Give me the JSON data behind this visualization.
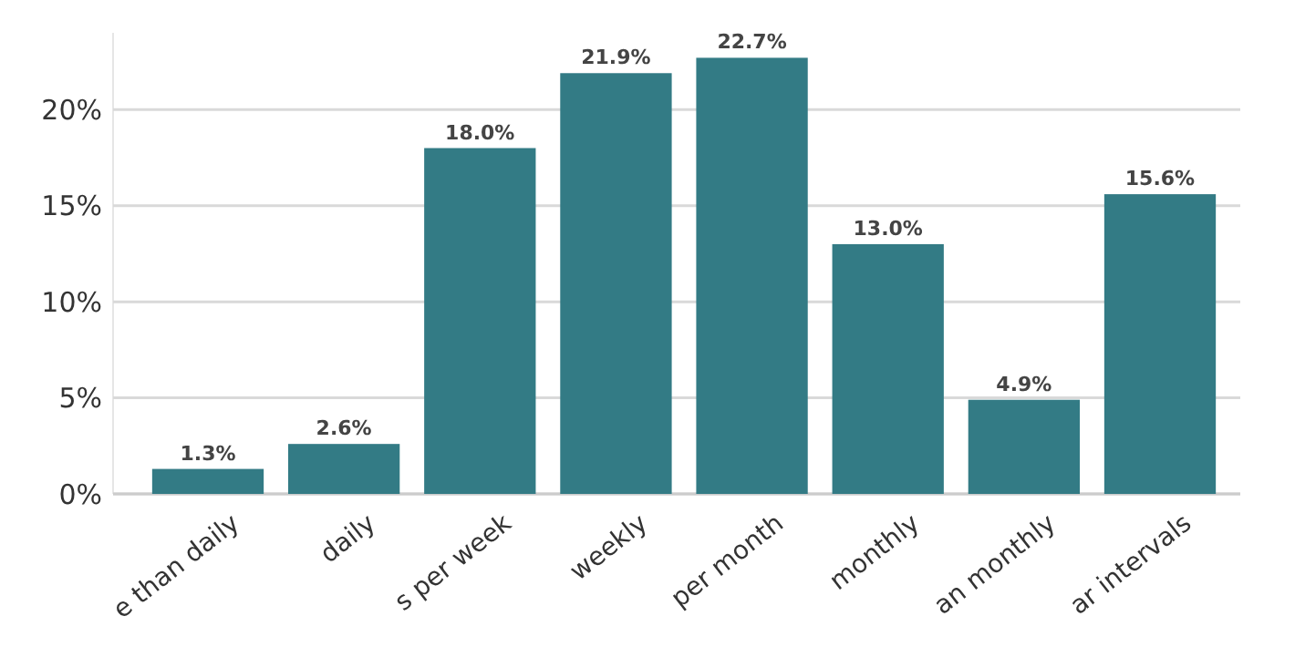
{
  "chart_data": {
    "type": "bar",
    "categories": [
      "e than daily",
      "daily",
      "s per week",
      "weekly",
      "per month",
      "monthly",
      "an monthly",
      "ar intervals"
    ],
    "values": [
      1.3,
      2.6,
      18.0,
      21.9,
      22.7,
      13.0,
      4.9,
      15.6
    ],
    "color": "#337b85",
    "ylim": [
      0,
      24
    ],
    "yticks": [
      {
        "value": 0,
        "label": "0%"
      },
      {
        "value": 5,
        "label": "5%"
      },
      {
        "value": 10,
        "label": "10%"
      },
      {
        "value": 15,
        "label": "15%"
      },
      {
        "value": 20,
        "label": "20%"
      }
    ],
    "value_labels": [
      "1.3%",
      "2.6%",
      "18.0%",
      "21.9%",
      "22.7%",
      "13.0%",
      "4.9%",
      "15.6%"
    ],
    "grid": "y"
  }
}
